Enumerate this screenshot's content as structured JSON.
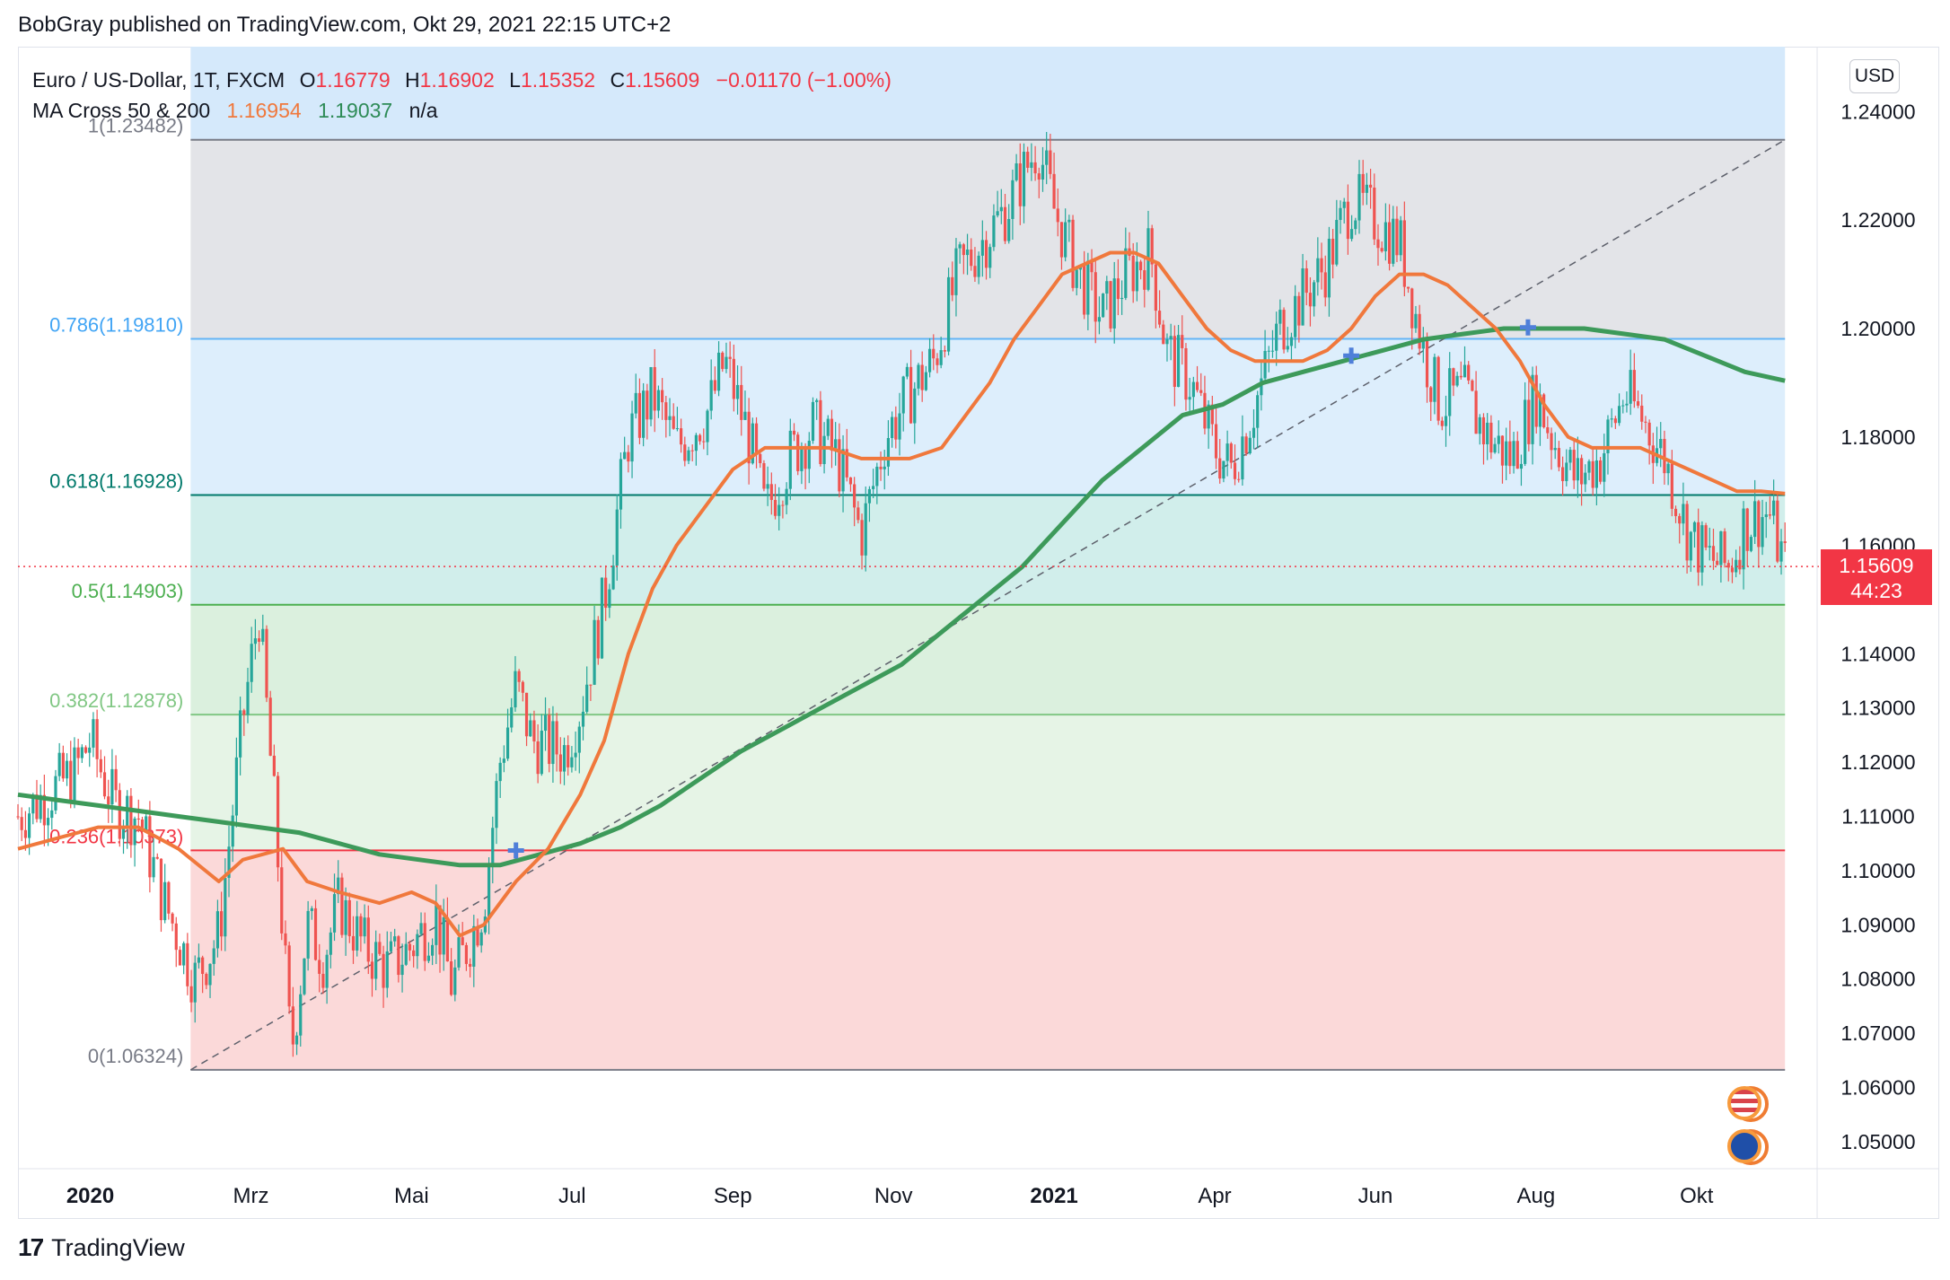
{
  "header": {
    "published_by": "BobGray published on TradingView.com, Okt 29, 2021 22:15 UTC+2"
  },
  "legend": {
    "symbol": "Euro / US-Dollar, 1T, FXCM",
    "ohlc": [
      {
        "label": "O",
        "value": "1.16779"
      },
      {
        "label": "H",
        "value": "1.16902"
      },
      {
        "label": "L",
        "value": "1.15352"
      },
      {
        "label": "C",
        "value": "1.15609"
      }
    ],
    "change": "−0.01170 (−1.00%)",
    "indicator_name": "MA Cross 50 & 200",
    "ma50_value": "1.16954",
    "ma200_value": "1.19037",
    "extra": "n/a"
  },
  "currency_button": "USD",
  "last_price": {
    "value": "1.15609",
    "countdown": "44:23"
  },
  "footer": {
    "brand": "TradingView"
  },
  "colors": {
    "up": "#26a69a",
    "down": "#ef5350",
    "ma50": "#f0783c",
    "ma200": "#3d9a5a",
    "last_price": "#f23645"
  },
  "chart_data": {
    "type": "candlestick",
    "y_range": [
      1.045,
      1.252
    ],
    "y_ticks": [
      {
        "value": 1.24,
        "label": "1.24000"
      },
      {
        "value": 1.22,
        "label": "1.22000"
      },
      {
        "value": 1.2,
        "label": "1.20000"
      },
      {
        "value": 1.18,
        "label": "1.18000"
      },
      {
        "value": 1.16,
        "label": "1.16000"
      },
      {
        "value": 1.14,
        "label": "1.14000"
      },
      {
        "value": 1.13,
        "label": "1.13000"
      },
      {
        "value": 1.12,
        "label": "1.12000"
      },
      {
        "value": 1.11,
        "label": "1.11000"
      },
      {
        "value": 1.1,
        "label": "1.10000"
      },
      {
        "value": 1.09,
        "label": "1.09000"
      },
      {
        "value": 1.08,
        "label": "1.08000"
      },
      {
        "value": 1.07,
        "label": "1.07000"
      },
      {
        "value": 1.06,
        "label": "1.06000"
      },
      {
        "value": 1.05,
        "label": "1.05000"
      }
    ],
    "x_range": [
      0,
      22.4
    ],
    "x_ticks": [
      {
        "value": 0.9,
        "label": "2020",
        "bold": true
      },
      {
        "value": 2.9,
        "label": "Mrz",
        "bold": false
      },
      {
        "value": 4.9,
        "label": "Mai",
        "bold": false
      },
      {
        "value": 6.9,
        "label": "Jul",
        "bold": false
      },
      {
        "value": 8.9,
        "label": "Sep",
        "bold": false
      },
      {
        "value": 10.9,
        "label": "Nov",
        "bold": false
      },
      {
        "value": 12.9,
        "label": "2021",
        "bold": true
      },
      {
        "value": 14.9,
        "label": "Apr",
        "bold": false
      },
      {
        "value": 16.9,
        "label": "Jun",
        "bold": false
      },
      {
        "value": 18.9,
        "label": "Aug",
        "bold": false
      },
      {
        "value": 20.9,
        "label": "Okt",
        "bold": false
      }
    ],
    "fib_range_x": [
      2.15,
      22.0
    ],
    "fib_levels": [
      {
        "ratio": "1",
        "label": "1(1.23482)",
        "value": 1.23482,
        "line": "#787b86",
        "text": "#787b86",
        "fill": "#e3e4e8"
      },
      {
        "ratio": "0.786",
        "label": "0.786(1.19810)",
        "value": 1.1981,
        "line": "#64b5f6",
        "text": "#42a5f5",
        "fill": "#ddeefc"
      },
      {
        "ratio": "0.618",
        "label": "0.618(1.16928)",
        "value": 1.16928,
        "line": "#00796b",
        "text": "#00796b",
        "fill": "#d1eeeb"
      },
      {
        "ratio": "0.5",
        "label": "0.5(1.14903)",
        "value": 1.14903,
        "line": "#4caf50",
        "text": "#4caf50",
        "fill": "#dbf0de"
      },
      {
        "ratio": "0.382",
        "label": "0.382(1.12878)",
        "value": 1.12878,
        "line": "#81c784",
        "text": "#81c784",
        "fill": "#e6f4e6"
      },
      {
        "ratio": "0.236",
        "label": "0.236(1.10373)",
        "value": 1.10373,
        "line": "#f23645",
        "text": "#f23645",
        "fill": "#fbd9d9"
      },
      {
        "ratio": "0",
        "label": "0(1.06324)",
        "value": 1.06324,
        "line": "#787b86",
        "text": "#787b86",
        "fill": null
      }
    ],
    "top_band_fill": "#d5e9fb",
    "trend_line": {
      "from": [
        2.15,
        1.06324
      ],
      "to": [
        22.0,
        1.23482
      ]
    },
    "last_price_value": 1.15609,
    "ohlc_path": [
      [
        0.0,
        1.11
      ],
      [
        0.7,
        1.118
      ],
      [
        0.9,
        1.124
      ],
      [
        1.2,
        1.112
      ],
      [
        1.5,
        1.11
      ],
      [
        1.8,
        1.095
      ],
      [
        2.2,
        1.08
      ],
      [
        2.5,
        1.088
      ],
      [
        2.8,
        1.128
      ],
      [
        3.0,
        1.148
      ],
      [
        3.2,
        1.11
      ],
      [
        3.4,
        1.066
      ],
      [
        3.6,
        1.09
      ],
      [
        3.8,
        1.084
      ],
      [
        4.0,
        1.094
      ],
      [
        4.3,
        1.086
      ],
      [
        4.6,
        1.082
      ],
      [
        4.9,
        1.086
      ],
      [
        5.2,
        1.092
      ],
      [
        5.4,
        1.079
      ],
      [
        5.8,
        1.094
      ],
      [
        6.0,
        1.12
      ],
      [
        6.2,
        1.134
      ],
      [
        6.4,
        1.124
      ],
      [
        6.8,
        1.122
      ],
      [
        7.0,
        1.13
      ],
      [
        7.3,
        1.15
      ],
      [
        7.6,
        1.18
      ],
      [
        7.9,
        1.188
      ],
      [
        8.2,
        1.178
      ],
      [
        8.6,
        1.185
      ],
      [
        8.8,
        1.194
      ],
      [
        9.1,
        1.18
      ],
      [
        9.3,
        1.166
      ],
      [
        9.6,
        1.176
      ],
      [
        9.9,
        1.182
      ],
      [
        10.2,
        1.176
      ],
      [
        10.5,
        1.162
      ],
      [
        10.8,
        1.18
      ],
      [
        11.1,
        1.188
      ],
      [
        11.4,
        1.194
      ],
      [
        11.7,
        1.21
      ],
      [
        12.0,
        1.216
      ],
      [
        12.3,
        1.222
      ],
      [
        12.5,
        1.228
      ],
      [
        12.7,
        1.234
      ],
      [
        12.9,
        1.222
      ],
      [
        13.2,
        1.21
      ],
      [
        13.5,
        1.202
      ],
      [
        13.8,
        1.21
      ],
      [
        14.1,
        1.214
      ],
      [
        14.3,
        1.196
      ],
      [
        14.6,
        1.19
      ],
      [
        14.9,
        1.178
      ],
      [
        15.1,
        1.174
      ],
      [
        15.4,
        1.186
      ],
      [
        15.7,
        1.2
      ],
      [
        16.0,
        1.206
      ],
      [
        16.3,
        1.212
      ],
      [
        16.6,
        1.224
      ],
      [
        16.9,
        1.22
      ],
      [
        17.2,
        1.216
      ],
      [
        17.5,
        1.196
      ],
      [
        17.7,
        1.186
      ],
      [
        18.0,
        1.188
      ],
      [
        18.3,
        1.18
      ],
      [
        18.6,
        1.176
      ],
      [
        18.9,
        1.188
      ],
      [
        19.1,
        1.18
      ],
      [
        19.4,
        1.172
      ],
      [
        19.7,
        1.176
      ],
      [
        20.0,
        1.188
      ],
      [
        20.2,
        1.184
      ],
      [
        20.5,
        1.176
      ],
      [
        20.8,
        1.162
      ],
      [
        21.0,
        1.158
      ],
      [
        21.3,
        1.156
      ],
      [
        21.5,
        1.164
      ],
      [
        21.8,
        1.166
      ],
      [
        22.0,
        1.156
      ]
    ],
    "ma50": [
      [
        0.0,
        1.104
      ],
      [
        0.5,
        1.106
      ],
      [
        1.0,
        1.108
      ],
      [
        1.5,
        1.108
      ],
      [
        2.0,
        1.104
      ],
      [
        2.5,
        1.098
      ],
      [
        2.8,
        1.102
      ],
      [
        3.3,
        1.104
      ],
      [
        3.6,
        1.098
      ],
      [
        4.0,
        1.096
      ],
      [
        4.5,
        1.094
      ],
      [
        4.9,
        1.096
      ],
      [
        5.2,
        1.094
      ],
      [
        5.5,
        1.088
      ],
      [
        5.8,
        1.09
      ],
      [
        6.2,
        1.098
      ],
      [
        6.6,
        1.104
      ],
      [
        7.0,
        1.114
      ],
      [
        7.3,
        1.124
      ],
      [
        7.6,
        1.14
      ],
      [
        7.9,
        1.152
      ],
      [
        8.2,
        1.16
      ],
      [
        8.6,
        1.168
      ],
      [
        8.9,
        1.174
      ],
      [
        9.3,
        1.178
      ],
      [
        9.7,
        1.178
      ],
      [
        10.1,
        1.178
      ],
      [
        10.5,
        1.176
      ],
      [
        10.8,
        1.176
      ],
      [
        11.1,
        1.176
      ],
      [
        11.5,
        1.178
      ],
      [
        11.8,
        1.184
      ],
      [
        12.1,
        1.19
      ],
      [
        12.4,
        1.198
      ],
      [
        12.7,
        1.204
      ],
      [
        13.0,
        1.21
      ],
      [
        13.3,
        1.212
      ],
      [
        13.6,
        1.214
      ],
      [
        13.9,
        1.214
      ],
      [
        14.2,
        1.212
      ],
      [
        14.5,
        1.206
      ],
      [
        14.8,
        1.2
      ],
      [
        15.1,
        1.196
      ],
      [
        15.4,
        1.194
      ],
      [
        15.7,
        1.194
      ],
      [
        16.0,
        1.194
      ],
      [
        16.3,
        1.196
      ],
      [
        16.6,
        1.2
      ],
      [
        16.9,
        1.206
      ],
      [
        17.2,
        1.21
      ],
      [
        17.5,
        1.21
      ],
      [
        17.8,
        1.208
      ],
      [
        18.1,
        1.204
      ],
      [
        18.4,
        1.2
      ],
      [
        18.7,
        1.194
      ],
      [
        19.0,
        1.186
      ],
      [
        19.3,
        1.18
      ],
      [
        19.6,
        1.178
      ],
      [
        19.9,
        1.178
      ],
      [
        20.2,
        1.178
      ],
      [
        20.5,
        1.176
      ],
      [
        20.8,
        1.174
      ],
      [
        21.1,
        1.172
      ],
      [
        21.4,
        1.17
      ],
      [
        21.7,
        1.17
      ],
      [
        22.0,
        1.16954
      ]
    ],
    "ma200": [
      [
        0.0,
        1.114
      ],
      [
        0.5,
        1.113
      ],
      [
        1.0,
        1.112
      ],
      [
        1.5,
        1.111
      ],
      [
        2.0,
        1.11
      ],
      [
        2.5,
        1.109
      ],
      [
        3.0,
        1.108
      ],
      [
        3.5,
        1.107
      ],
      [
        4.0,
        1.105
      ],
      [
        4.5,
        1.103
      ],
      [
        5.0,
        1.102
      ],
      [
        5.5,
        1.101
      ],
      [
        6.0,
        1.101
      ],
      [
        6.5,
        1.103
      ],
      [
        7.0,
        1.105
      ],
      [
        7.5,
        1.108
      ],
      [
        8.0,
        1.112
      ],
      [
        8.5,
        1.117
      ],
      [
        9.0,
        1.122
      ],
      [
        9.5,
        1.126
      ],
      [
        10.0,
        1.13
      ],
      [
        10.5,
        1.134
      ],
      [
        11.0,
        1.138
      ],
      [
        11.5,
        1.144
      ],
      [
        12.0,
        1.15
      ],
      [
        12.5,
        1.156
      ],
      [
        13.0,
        1.164
      ],
      [
        13.5,
        1.172
      ],
      [
        14.0,
        1.178
      ],
      [
        14.5,
        1.184
      ],
      [
        15.0,
        1.186
      ],
      [
        15.5,
        1.19
      ],
      [
        16.0,
        1.192
      ],
      [
        16.5,
        1.194
      ],
      [
        17.0,
        1.196
      ],
      [
        17.5,
        1.198
      ],
      [
        18.0,
        1.199
      ],
      [
        18.5,
        1.2
      ],
      [
        19.0,
        1.2
      ],
      [
        19.5,
        1.2
      ],
      [
        20.0,
        1.199
      ],
      [
        20.5,
        1.198
      ],
      [
        21.0,
        1.195
      ],
      [
        21.5,
        1.192
      ],
      [
        22.0,
        1.19037
      ]
    ],
    "cross_markers": [
      [
        6.2,
        1.1037
      ],
      [
        16.6,
        1.195
      ],
      [
        18.8,
        1.2002
      ]
    ]
  }
}
